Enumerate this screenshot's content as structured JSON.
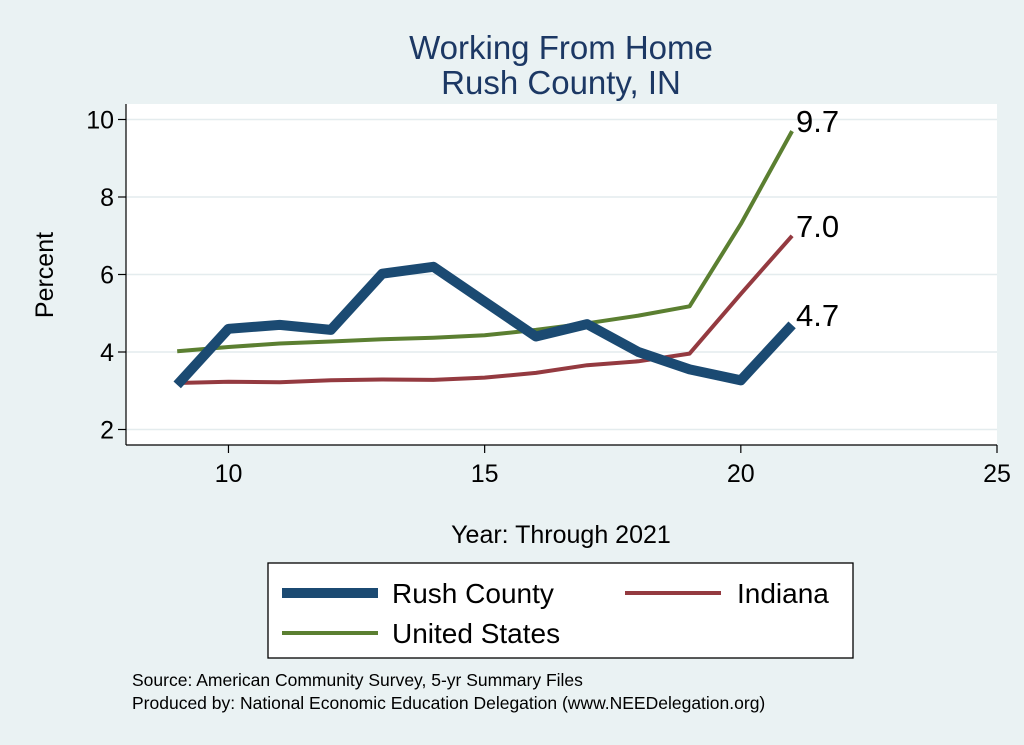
{
  "chart_data": {
    "type": "line",
    "title": [
      "Working From Home",
      "Rush County, IN"
    ],
    "xlabel": "Year: Through 2021",
    "ylabel": "Percent",
    "xlim": [
      8,
      25
    ],
    "ylim": [
      1.6,
      10.4
    ],
    "xticks": [
      10,
      15,
      20,
      25
    ],
    "yticks": [
      2,
      4,
      6,
      8,
      10
    ],
    "grid": true,
    "x": [
      9,
      10,
      11,
      12,
      13,
      14,
      15,
      16,
      17,
      18,
      19,
      20,
      21
    ],
    "series": [
      {
        "name": "Rush County",
        "color": "#1b4a72",
        "width": "thick",
        "values": [
          3.15,
          4.6,
          4.7,
          4.57,
          6.02,
          6.2,
          5.3,
          4.4,
          4.72,
          4.0,
          3.55,
          3.27,
          4.7
        ],
        "end_label": "4.7"
      },
      {
        "name": "Indiana",
        "color": "#943a40",
        "width": "thin",
        "values": [
          3.2,
          3.23,
          3.22,
          3.27,
          3.29,
          3.28,
          3.34,
          3.46,
          3.66,
          3.76,
          3.96,
          5.5,
          7.0
        ],
        "end_label": "7.0"
      },
      {
        "name": "United States",
        "color": "#5b7f31",
        "width": "thin",
        "values": [
          4.02,
          4.13,
          4.22,
          4.27,
          4.33,
          4.37,
          4.43,
          4.57,
          4.74,
          4.94,
          5.18,
          7.3,
          9.7
        ],
        "end_label": "9.7"
      }
    ],
    "legend": {
      "placement": "bottom",
      "entries": [
        "Rush County",
        "Indiana",
        "United States"
      ]
    },
    "notes": [
      "Source: American Community Survey, 5-yr Summary Files",
      "Produced by: National Economic Education Delegation (www.NEEDelegation.org)"
    ]
  }
}
